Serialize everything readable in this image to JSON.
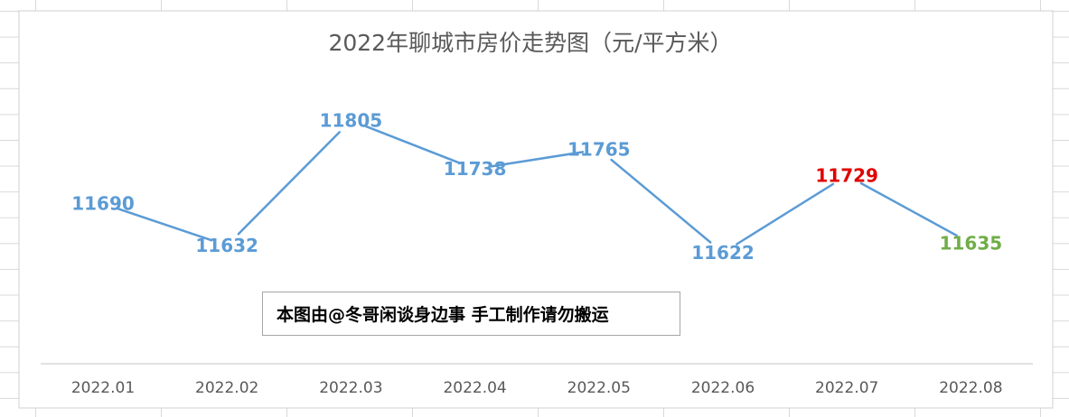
{
  "watermark": {
    "text": "本图由@冬哥闲谈身边事 手工制作请勿搬运"
  },
  "chart_data": {
    "type": "line",
    "title": "2022年聊城市房价走势图（元/平方米）",
    "xlabel": "",
    "ylabel": "",
    "categories": [
      "2022.01",
      "2022.02",
      "2022.03",
      "2022.04",
      "2022.05",
      "2022.06",
      "2022.07",
      "2022.08"
    ],
    "series": [
      {
        "values": [
          11690,
          11632,
          11805,
          11738,
          11765,
          11622,
          11729,
          11635
        ],
        "color": "#5b9bd5"
      }
    ],
    "data_label_colors": [
      "#5b9bd5",
      "#5b9bd5",
      "#5b9bd5",
      "#5b9bd5",
      "#5b9bd5",
      "#5b9bd5",
      "#e00000",
      "#70ad47"
    ],
    "grid": false,
    "legend": "none"
  }
}
